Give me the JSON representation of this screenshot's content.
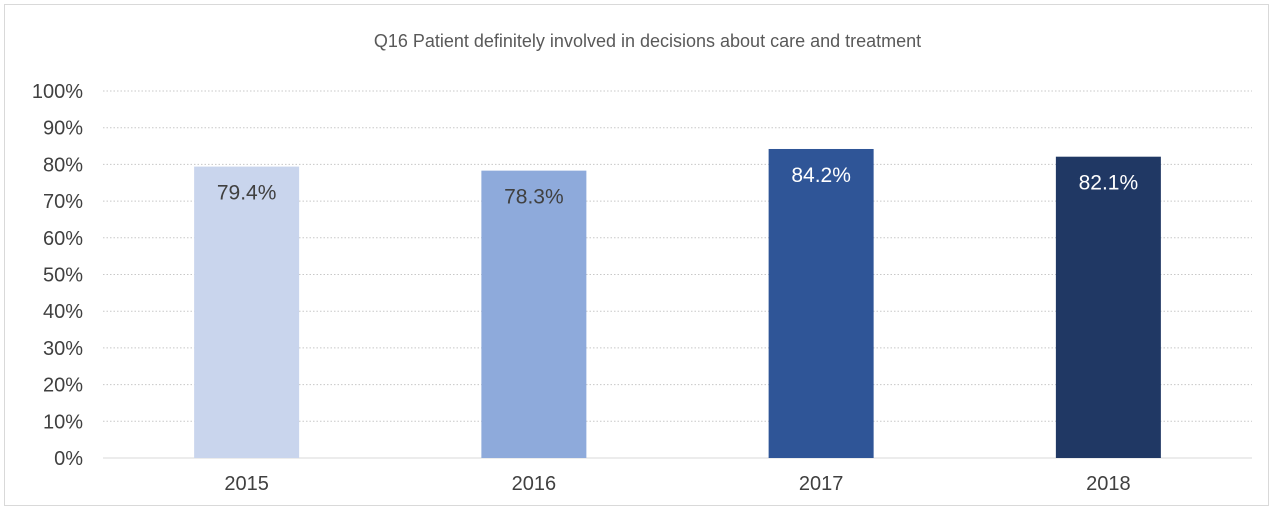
{
  "chart_data": {
    "type": "bar",
    "title": "Q16 Patient definitely involved in decisions about care and treatment",
    "categories": [
      "2015",
      "2016",
      "2017",
      "2018"
    ],
    "values": [
      79.4,
      78.3,
      84.2,
      82.1
    ],
    "data_labels": [
      "79.4%",
      "78.3%",
      "84.2%",
      "82.1%"
    ],
    "bar_colors": [
      "#c9d5ed",
      "#8eaadb",
      "#2f5597",
      "#203864"
    ],
    "label_colors": [
      "#404040",
      "#404040",
      "#ffffff",
      "#ffffff"
    ],
    "ylim": [
      0,
      100
    ],
    "y_ticks": [
      0,
      10,
      20,
      30,
      40,
      50,
      60,
      70,
      80,
      90,
      100
    ],
    "y_tick_labels": [
      "0%",
      "10%",
      "20%",
      "30%",
      "40%",
      "50%",
      "60%",
      "70%",
      "80%",
      "90%",
      "100%"
    ],
    "xlabel": "",
    "ylabel": "",
    "grid": true,
    "grid_style": "dotted",
    "legend": false
  }
}
